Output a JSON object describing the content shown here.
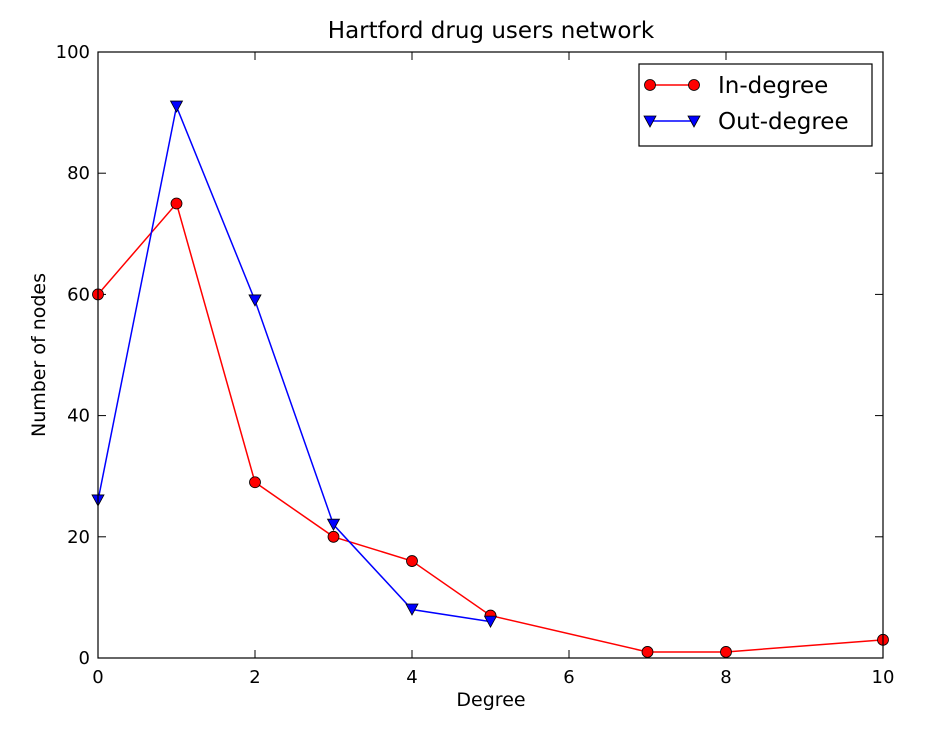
{
  "chart_data": {
    "type": "line",
    "title": "Hartford drug users network",
    "xlabel": "Degree",
    "ylabel": "Number of nodes",
    "xlim": [
      0,
      10
    ],
    "ylim": [
      0,
      100
    ],
    "xticks": [
      0,
      2,
      4,
      6,
      8,
      10
    ],
    "yticks": [
      0,
      20,
      40,
      60,
      80,
      100
    ],
    "grid": false,
    "legend_position": "top-right",
    "series": [
      {
        "name": "In-degree",
        "color": "#ff0000",
        "marker": "circle",
        "x": [
          0,
          1,
          2,
          3,
          4,
          5,
          7,
          8,
          10
        ],
        "y": [
          60,
          75,
          29,
          20,
          16,
          7,
          1,
          1,
          3
        ]
      },
      {
        "name": "Out-degree",
        "color": "#0000ff",
        "marker": "triangle-down",
        "x": [
          0,
          1,
          2,
          3,
          4,
          5
        ],
        "y": [
          26,
          91,
          59,
          22,
          8,
          6
        ]
      }
    ]
  }
}
